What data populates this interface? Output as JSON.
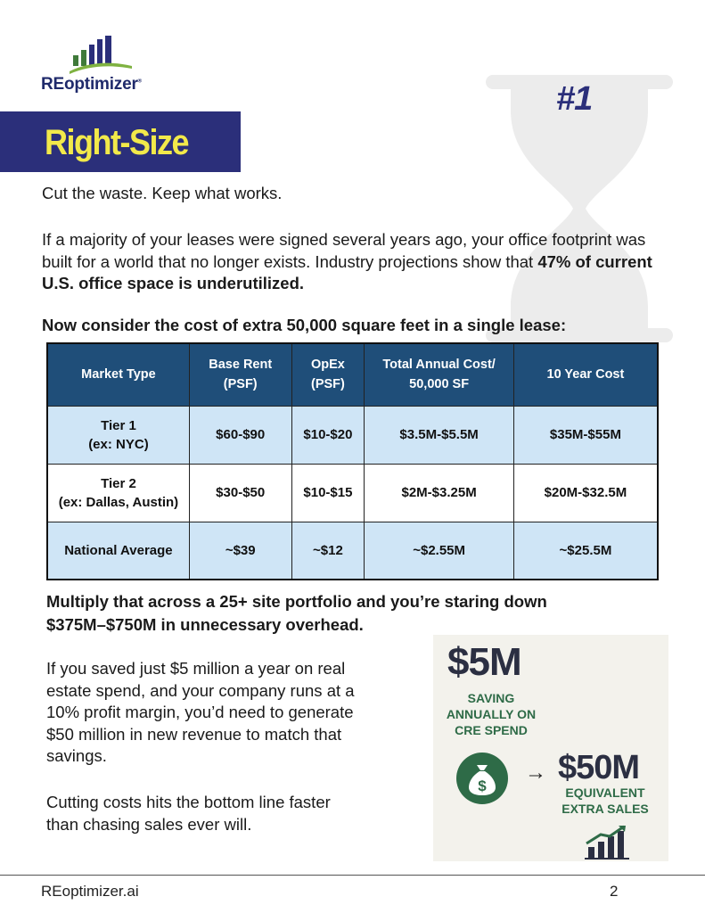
{
  "logo": {
    "brand_re": "RE",
    "brand_rest": "optimizer",
    "registered": "®"
  },
  "badge": "#1",
  "banner": {
    "title": "Right-Size"
  },
  "tagline": "Cut the waste. Keep what works.",
  "intro": {
    "text_before": "If a majority of your leases were signed several years ago, your office footprint was built for a world that no longer exists. Industry projections show that ",
    "bold": "47% of current U.S. office space is underutilized."
  },
  "table_heading": "Now consider the cost of extra 50,000 square feet in a single lease:",
  "table": {
    "headers": [
      {
        "line1": "Market Type",
        "line2": ""
      },
      {
        "line1": "Base Rent",
        "line2": "(PSF)"
      },
      {
        "line1": "OpEx",
        "line2": "(PSF)"
      },
      {
        "line1": "Total Annual Cost/",
        "line2": "50,000 SF"
      },
      {
        "line1": "10 Year Cost",
        "line2": ""
      }
    ],
    "rows": [
      {
        "market_line1": "Tier 1",
        "market_line2": "(ex: NYC)",
        "base_rent": "$60-$90",
        "opex": "$10-$20",
        "annual": "$3.5M-$5.5M",
        "ten_year": "$35M-$55M"
      },
      {
        "market_line1": "Tier 2",
        "market_line2": "(ex: Dallas, Austin)",
        "base_rent": "$30-$50",
        "opex": "$10-$15",
        "annual": "$2M-$3.25M",
        "ten_year": "$20M-$32.5M"
      },
      {
        "market_line1": "National Average",
        "market_line2": "",
        "base_rent": "~$39",
        "opex": "~$12",
        "annual": "~$2.55M",
        "ten_year": "~$25.5M"
      }
    ]
  },
  "multiply": {
    "line1": "Multiply that across a 25+ site portfolio and you’re staring down",
    "line2": "$375M–$750M in unnecessary overhead."
  },
  "body_savings": {
    "lines": [
      "If you saved just $5 million a year on real",
      "estate spend, and your company runs at a",
      "10% profit margin, you’d need to generate",
      "$50 million in new revenue to match that",
      "savings."
    ]
  },
  "body_closing": {
    "lines": [
      "Cutting costs hits the bottom line faster",
      "than chasing sales ever will."
    ]
  },
  "infographic": {
    "amount_small": "$5M",
    "saving_lines": [
      "SAVING",
      "ANNUALLY ON",
      "CRE SPEND"
    ],
    "arrow": "→",
    "amount_big": "$50M",
    "equiv_lines": [
      "EQUIVALENT",
      "EXTRA SALES"
    ],
    "bag_symbol": "$"
  },
  "footer": {
    "site": "REoptimizer.ai",
    "page": "2"
  },
  "colors": {
    "navy": "#2b2f7a",
    "banner_text": "#f2e94a",
    "table_header": "#1f4e79",
    "table_tint": "#cfe5f6",
    "accent_green": "#2e6b47"
  }
}
